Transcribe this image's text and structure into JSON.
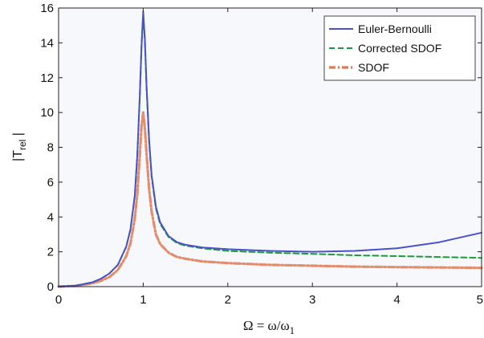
{
  "chart_data": {
    "type": "line",
    "title": "",
    "xlabel": "Ω = ω/ω",
    "xlabel_subscript": "1",
    "ylabel": "|T",
    "ylabel_subscript": "rel",
    "ylabel_suffix": " |",
    "xlim": [
      0,
      5
    ],
    "ylim": [
      0,
      16
    ],
    "xticks": [
      0,
      1,
      2,
      3,
      4,
      5
    ],
    "xtick_labels": [
      "0",
      "1",
      "2",
      "3",
      "4",
      "5"
    ],
    "yticks": [
      0,
      2,
      4,
      6,
      8,
      10,
      12,
      14,
      16
    ],
    "ytick_labels": [
      "0",
      "2",
      "4",
      "6",
      "8",
      "10",
      "12",
      "14",
      "16"
    ],
    "grid": false,
    "legend_position": "top-right",
    "x": [
      0.0,
      0.2,
      0.4,
      0.5,
      0.6,
      0.7,
      0.8,
      0.85,
      0.9,
      0.93,
      0.96,
      0.98,
      1.0,
      1.02,
      1.04,
      1.07,
      1.1,
      1.15,
      1.2,
      1.3,
      1.4,
      1.5,
      1.7,
      2.0,
      2.5,
      3.0,
      3.5,
      4.0,
      4.5,
      5.0
    ],
    "series": [
      {
        "name": "Euler-Bernoulli",
        "color": "#4a52c8",
        "dash": "solid",
        "values": [
          0.0,
          0.05,
          0.25,
          0.45,
          0.75,
          1.25,
          2.3,
          3.3,
          5.2,
          7.5,
          11.0,
          13.8,
          15.8,
          14.2,
          11.5,
          8.4,
          6.4,
          4.6,
          3.7,
          2.9,
          2.55,
          2.4,
          2.25,
          2.15,
          2.05,
          2.0,
          2.05,
          2.2,
          2.55,
          3.1
        ]
      },
      {
        "name": "Corrected SDOF",
        "color": "#1e9a3a",
        "dash": "dashed",
        "values": [
          0.0,
          0.05,
          0.25,
          0.45,
          0.75,
          1.25,
          2.3,
          3.3,
          5.2,
          7.5,
          11.0,
          13.8,
          15.6,
          14.1,
          11.4,
          8.3,
          6.3,
          4.5,
          3.6,
          2.85,
          2.5,
          2.35,
          2.2,
          2.05,
          1.95,
          1.88,
          1.8,
          1.75,
          1.7,
          1.65
        ]
      },
      {
        "name": "SDOF",
        "color": "#e07a52",
        "dash": "dashdot",
        "values": [
          0.0,
          0.04,
          0.19,
          0.33,
          0.55,
          0.95,
          1.75,
          2.5,
          3.9,
          5.3,
          7.6,
          9.2,
          10.0,
          9.1,
          7.6,
          5.6,
          4.3,
          3.0,
          2.45,
          1.95,
          1.7,
          1.6,
          1.45,
          1.35,
          1.25,
          1.2,
          1.15,
          1.12,
          1.1,
          1.08
        ]
      }
    ]
  }
}
